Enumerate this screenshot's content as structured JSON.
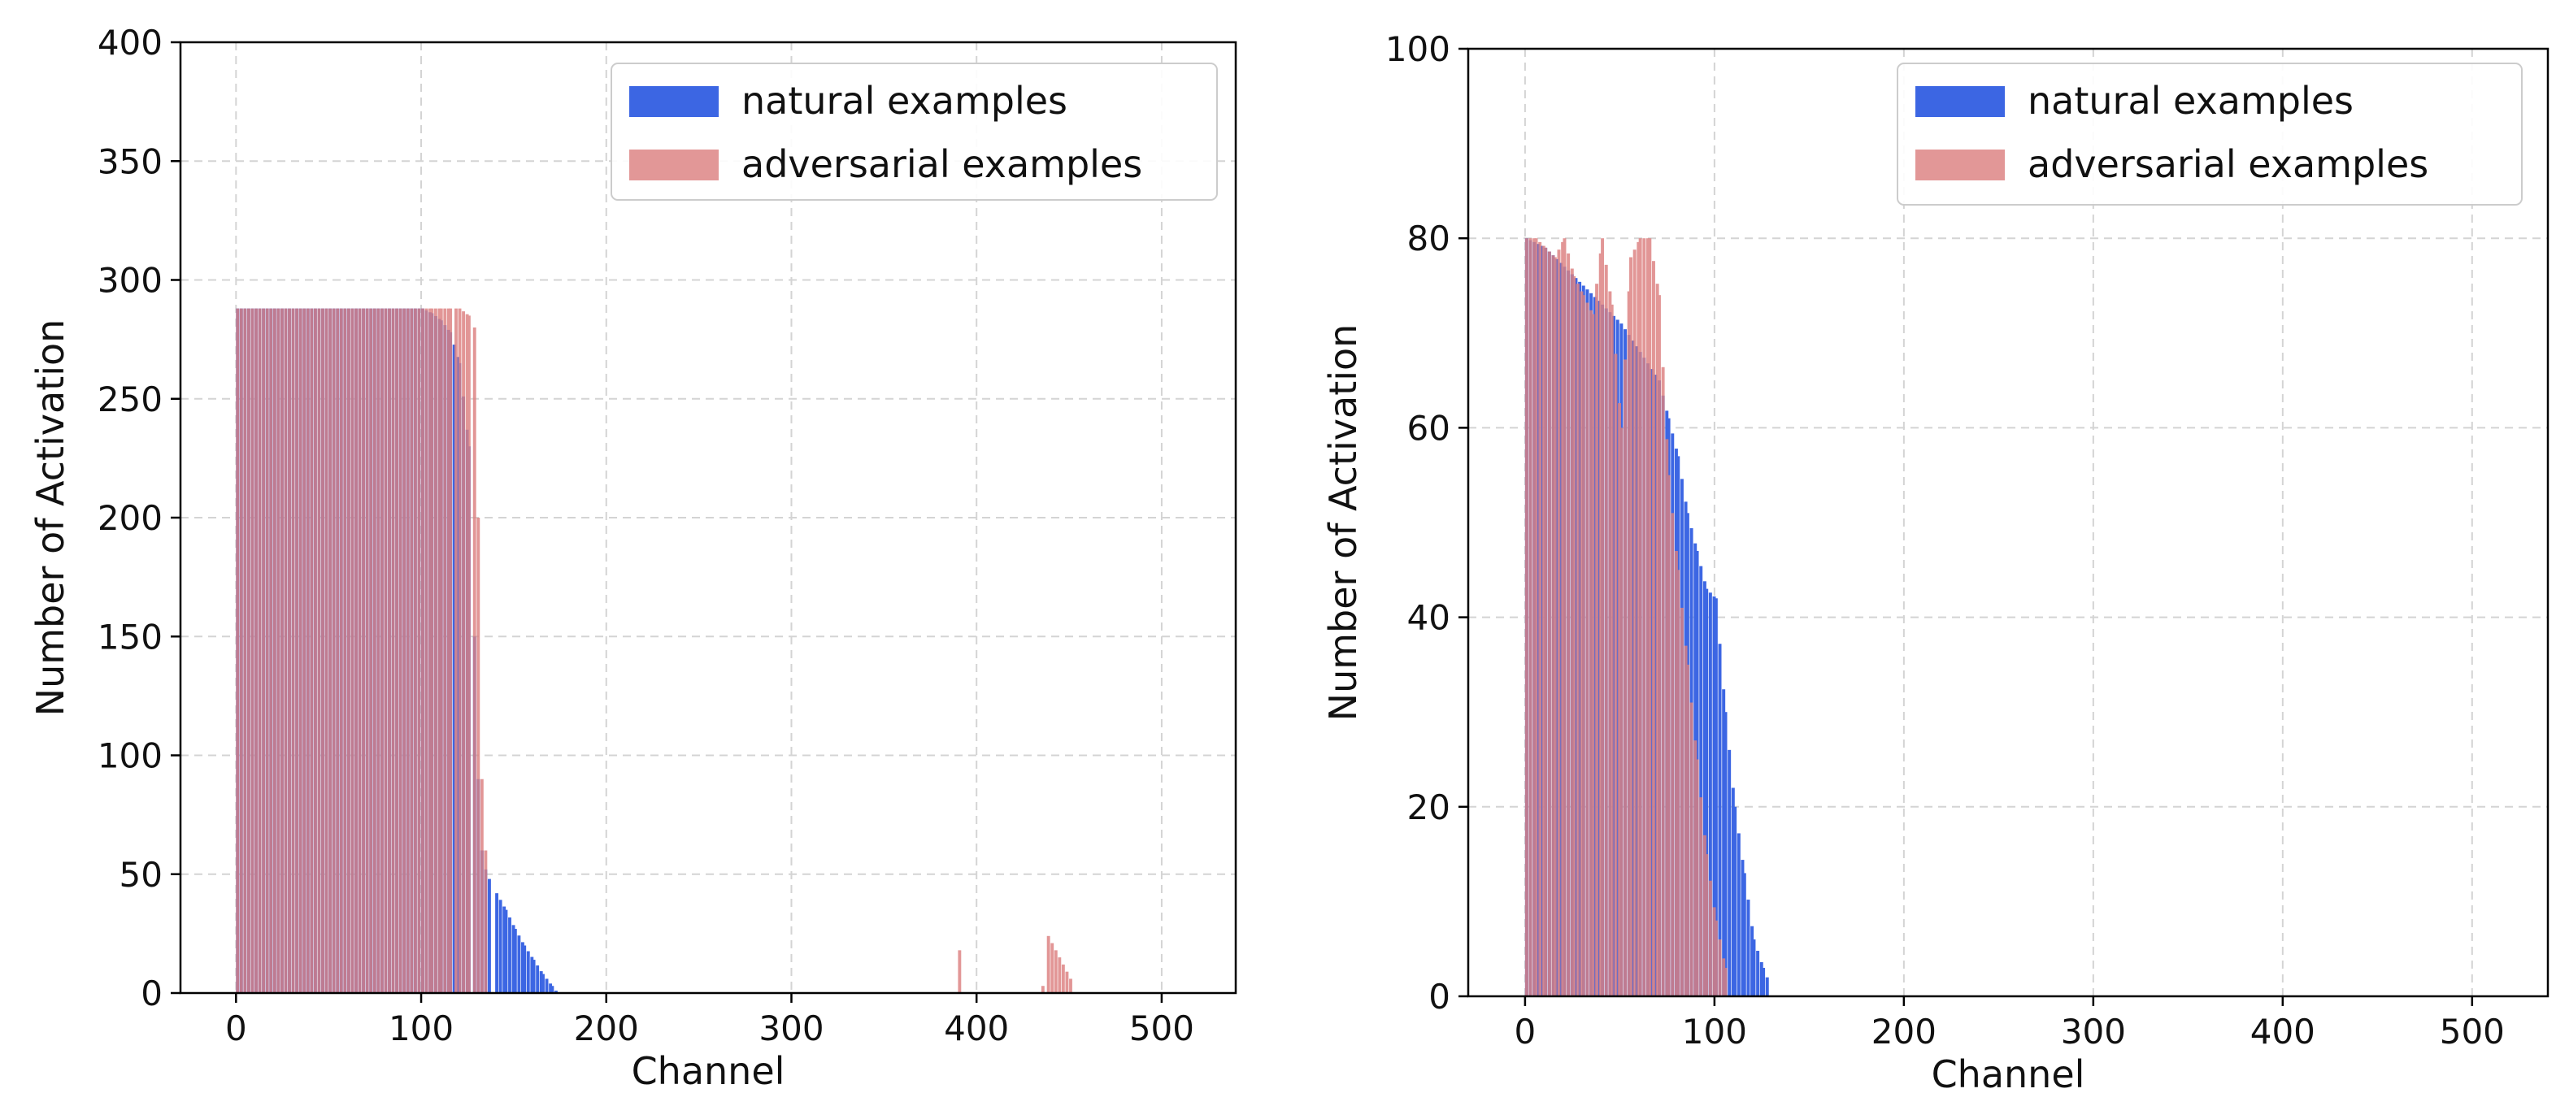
{
  "chart_data": [
    {
      "type": "bar",
      "title": "",
      "xlabel": "Channel",
      "ylabel": "Number of Activation",
      "xlim": [
        -30,
        540
      ],
      "ylim": [
        0,
        400
      ],
      "xticks": [
        "0",
        "100",
        "200",
        "300",
        "400",
        "500"
      ],
      "yticks": [
        "0",
        "50",
        "100",
        "150",
        "200",
        "250",
        "300",
        "350",
        "400"
      ],
      "grid": true,
      "legend_position": "top-right",
      "series": [
        {
          "name": "natural examples",
          "color": "#3c66e3",
          "x": [
            0,
            10,
            20,
            30,
            40,
            50,
            60,
            70,
            80,
            90,
            100,
            105,
            110,
            115,
            120,
            125,
            128,
            130,
            132,
            134,
            136,
            140,
            145,
            150,
            155,
            160,
            165,
            170,
            172
          ],
          "values": [
            288,
            288,
            288,
            288,
            288,
            288,
            288,
            288,
            288,
            288,
            288,
            286,
            283,
            278,
            265,
            230,
            150,
            90,
            60,
            52,
            48,
            42,
            35,
            27,
            20,
            14,
            8,
            3,
            1
          ]
        },
        {
          "name": "adversarial examples",
          "color": "#dc8080",
          "x": [
            0,
            10,
            20,
            30,
            40,
            50,
            60,
            70,
            80,
            90,
            100,
            105,
            110,
            115,
            118,
            120,
            125,
            128,
            130,
            132,
            134,
            390,
            435,
            438,
            450
          ],
          "values": [
            288,
            288,
            288,
            288,
            288,
            288,
            288,
            288,
            288,
            288,
            288,
            288,
            288,
            288,
            288,
            288,
            285,
            280,
            200,
            90,
            60,
            18,
            3,
            24,
            6
          ]
        }
      ]
    },
    {
      "type": "bar",
      "title": "",
      "xlabel": "Channel",
      "ylabel": "Number of Activation",
      "xlim": [
        -30,
        540
      ],
      "ylim": [
        0,
        100
      ],
      "xticks": [
        "0",
        "100",
        "200",
        "300",
        "400",
        "500"
      ],
      "yticks": [
        "0",
        "20",
        "40",
        "60",
        "80",
        "100"
      ],
      "grid": true,
      "legend_position": "top-right",
      "series": [
        {
          "name": "natural examples",
          "color": "#3c66e3",
          "x": [
            0,
            10,
            20,
            30,
            40,
            50,
            60,
            70,
            75,
            80,
            85,
            90,
            95,
            100,
            105,
            110,
            115,
            120,
            125,
            127
          ],
          "values": [
            80,
            79,
            77,
            75,
            73,
            71,
            68,
            65,
            61,
            57,
            51,
            47,
            43,
            42,
            30,
            20,
            13,
            6,
            3,
            2
          ]
        },
        {
          "name": "adversarial examples",
          "color": "#dc8080",
          "x": [
            0,
            5,
            10,
            15,
            20,
            25,
            30,
            35,
            40,
            45,
            50,
            55,
            60,
            65,
            70,
            75,
            80,
            85,
            90,
            95,
            100,
            105
          ],
          "values": [
            80,
            80,
            79,
            78,
            80,
            76,
            74,
            72,
            80,
            73,
            60,
            78,
            80,
            80,
            74,
            55,
            45,
            35,
            25,
            15,
            8,
            3
          ]
        }
      ]
    }
  ]
}
